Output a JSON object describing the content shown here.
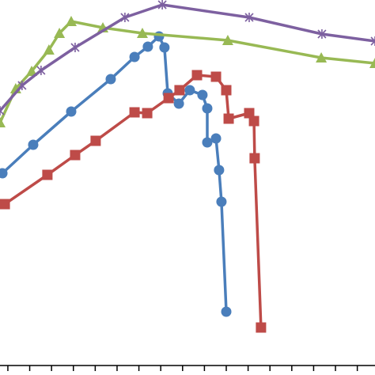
{
  "chart_data": {
    "type": "line",
    "xlim": [
      -0.36,
      16.81
    ],
    "ylim": [
      0,
      474
    ],
    "xticks": [
      0,
      1,
      2,
      3,
      4,
      5,
      6,
      7,
      8,
      9,
      10,
      11,
      12,
      13,
      14,
      15,
      16
    ],
    "series": [
      {
        "color": "#4a7ebb",
        "marker": "circle",
        "x": [
          -0.25,
          1.16,
          2.9,
          4.71,
          5.8,
          6.41,
          6.92,
          7.17,
          7.32,
          7.83,
          8.33,
          8.91,
          9.13,
          9.13,
          9.53,
          9.67,
          9.78,
          10
        ],
        "values": [
          255,
          291,
          333,
          374,
          402,
          415,
          428,
          414,
          356,
          343,
          360,
          354,
          337,
          294,
          299,
          259,
          219,
          80
        ]
      },
      {
        "color": "#be4b48",
        "marker": "square",
        "x": [
          -0.14,
          1.81,
          3.08,
          4.02,
          5.8,
          6.38,
          7.36,
          7.86,
          8.66,
          9.53,
          10,
          10.11,
          11.05,
          11.27,
          11.3,
          11.59
        ],
        "values": [
          216,
          253,
          278,
          296,
          332,
          331,
          350,
          360,
          379,
          377,
          360,
          324,
          331,
          321,
          274,
          60
        ]
      },
      {
        "color": "#98b954",
        "marker": "triangle",
        "x": [
          -0.36,
          0.36,
          1.09,
          1.88,
          2.36,
          2.9,
          4.35,
          6.16,
          10.07,
          14.35,
          16.81
        ],
        "values": [
          319,
          362,
          384,
          411,
          432,
          447,
          439,
          432,
          423,
          401,
          394
        ]
      },
      {
        "color": "#7d60a0",
        "marker": "star",
        "x": [
          -0.36,
          0.65,
          1.52,
          3.08,
          5.36,
          7.07,
          11.05,
          14.38,
          16.81
        ],
        "values": [
          334,
          366,
          385,
          414,
          452,
          468,
          452,
          431,
          422
        ]
      }
    ]
  }
}
